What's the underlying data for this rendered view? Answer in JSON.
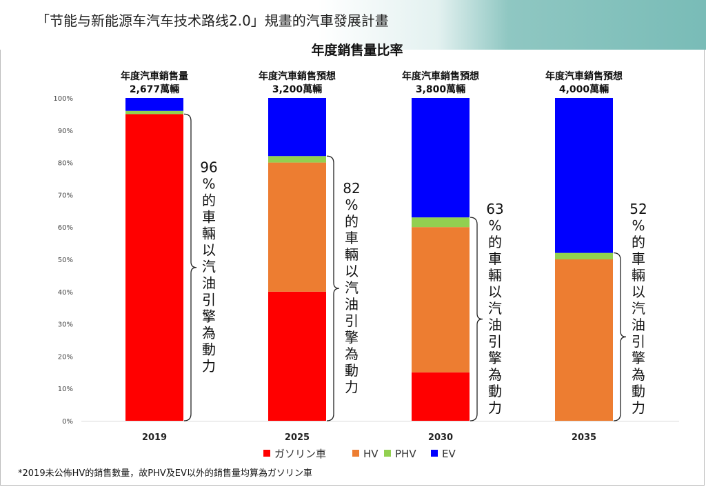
{
  "main_title": "「节能与新能源车汽车技术路线2.0」規畫的汽車發展計畫",
  "chart_title": "年度銷售量比率",
  "footnote": "*2019未公佈HV的銷售數量，故PHV及EV以外的銷售量均算為ガソリン車",
  "chart_data": {
    "type": "bar",
    "stacked": true,
    "title": "年度銷售量比率",
    "categories": [
      "2019",
      "2025",
      "2030",
      "2035"
    ],
    "ylim": [
      0,
      100
    ],
    "yticks": [
      "0%",
      "10%",
      "20%",
      "30%",
      "40%",
      "50%",
      "60%",
      "70%",
      "80%",
      "90%",
      "100%"
    ],
    "series": [
      {
        "name": "ガソリン車",
        "color": "#ff0000",
        "values": [
          95,
          40,
          15,
          0
        ]
      },
      {
        "name": "HV",
        "color": "#ed7d31",
        "values": [
          0,
          40,
          45,
          50
        ]
      },
      {
        "name": "PHV",
        "color": "#92d050",
        "values": [
          1,
          2,
          3,
          2
        ]
      },
      {
        "name": "EV",
        "color": "#0000ff",
        "values": [
          4,
          18,
          37,
          48
        ]
      }
    ],
    "bar_headers": [
      {
        "line1": "年度汽車銷售量",
        "line2": "2,677萬輛"
      },
      {
        "line1": "年度汽車銷售預想",
        "line2": "3,200萬輛"
      },
      {
        "line1": "年度汽車銷售預想",
        "line2": "3,800萬輛"
      },
      {
        "line1": "年度汽車銷售預想",
        "line2": "4,000萬輛"
      }
    ],
    "annotations": [
      {
        "percent": "96",
        "text": "%的車輛以汽油引擎為動力",
        "from": 0,
        "to": 95
      },
      {
        "percent": "82",
        "text": "%的車輛以汽油引擎為動力",
        "from": 0,
        "to": 82
      },
      {
        "percent": "63",
        "text": "%的車輛以汽油引擎為動力",
        "from": 0,
        "to": 63
      },
      {
        "percent": "52",
        "text": "%的車輛以汽油引擎為動力",
        "from": 0,
        "to": 52
      }
    ],
    "legend_position": "bottom",
    "grid": false
  }
}
